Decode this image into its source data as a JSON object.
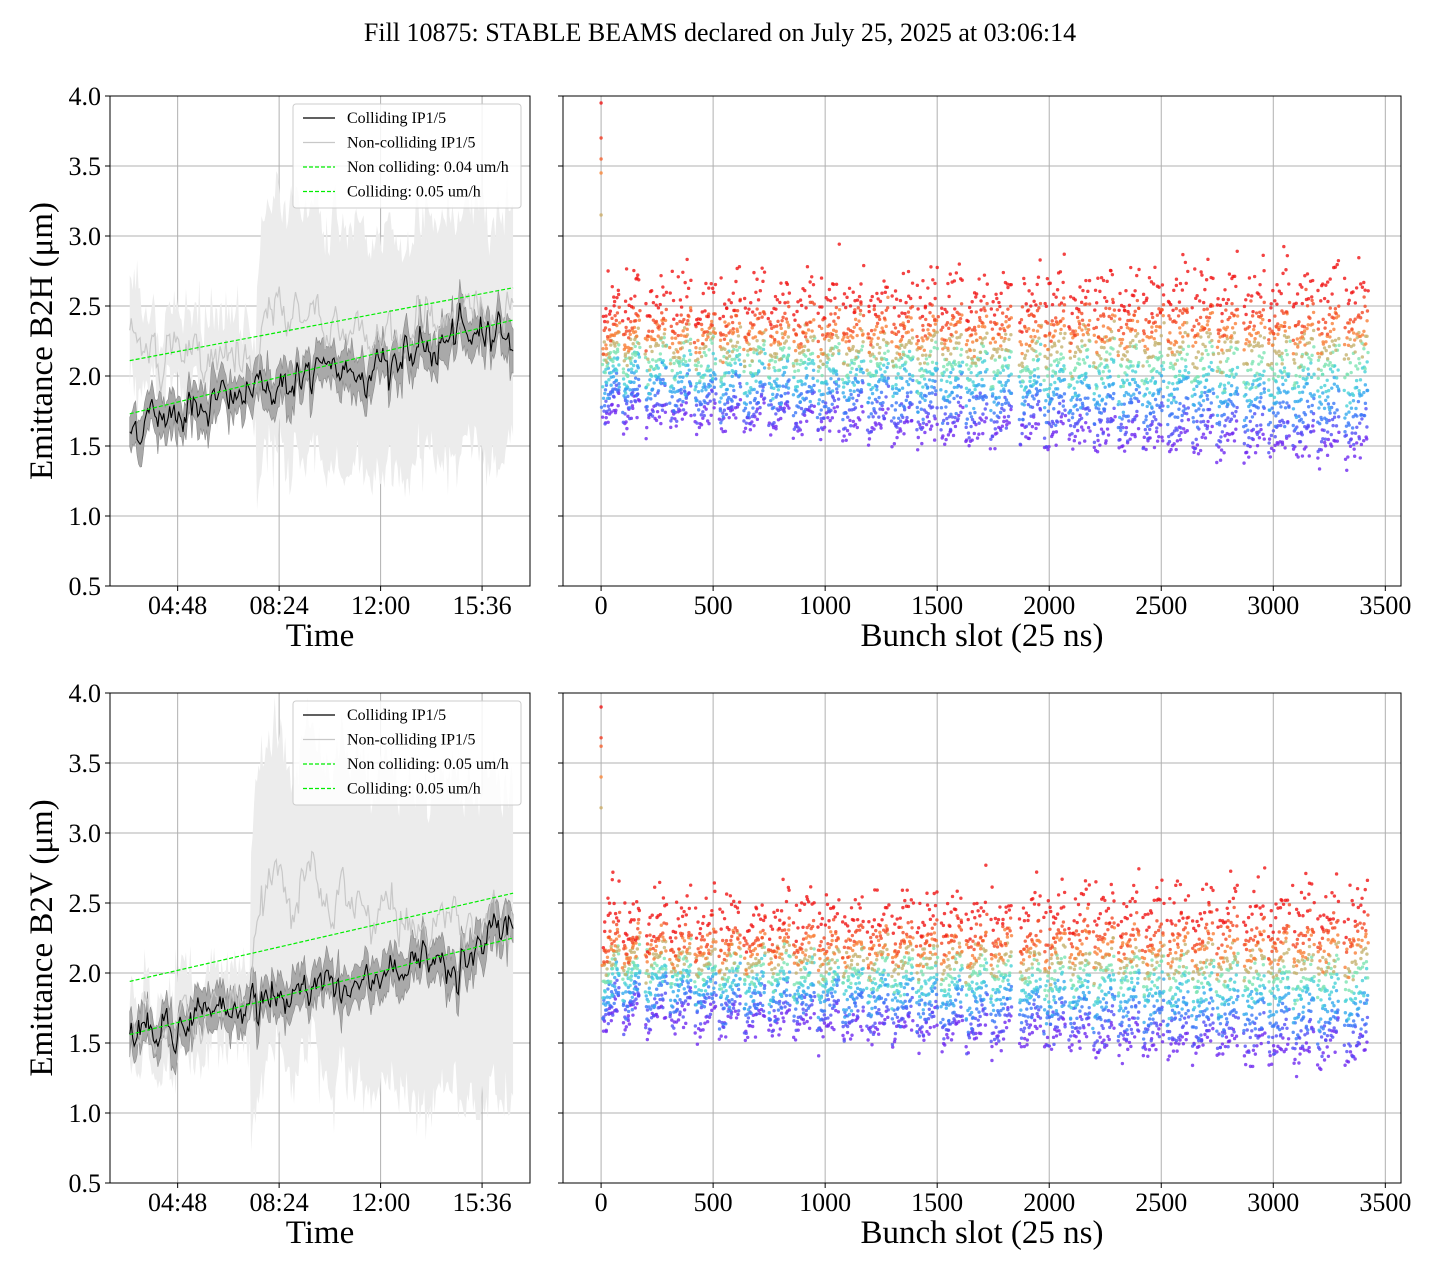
{
  "suptitle": "Fill 10875: STABLE BEAMS declared on July 25, 2025 at 03:06:14",
  "colors": {
    "colliding": "#000000",
    "noncolliding": "#c8c8c8",
    "band_colliding": "#a9a9a9",
    "band_noncolliding": "#ececec",
    "fit": "#00ee00",
    "grid": "#b0b0b0"
  },
  "chart_data": [
    {
      "id": "b2h-time",
      "type": "line",
      "ylabel": "Emittance B2H (μm)",
      "xlabel": "Time",
      "ylim": [
        0.5,
        4.0
      ],
      "yticks": [
        "0.5",
        "1.0",
        "1.5",
        "2.0",
        "2.5",
        "3.0",
        "3.5",
        "4.0"
      ],
      "xtick_labels": [
        "04:48",
        "08:24",
        "12:00",
        "15:36"
      ],
      "xtick_hours": [
        4.8,
        8.4,
        12.0,
        15.6
      ],
      "xlim_hours": [
        2.4,
        17.3
      ],
      "grid": true,
      "legend_position": "top-right",
      "legend": [
        "Colliding IP1/5",
        "Non-colliding IP1/5",
        "Non colliding: 0.04 um/h",
        "Colliding: 0.05 um/h"
      ],
      "series": [
        {
          "name": "Colliding IP1/5",
          "x": [
            3.1,
            4.0,
            5.0,
            6.0,
            7.0,
            8.0,
            9.0,
            10.0,
            11.0,
            12.0,
            13.0,
            14.0,
            15.0,
            16.0,
            16.7
          ],
          "y": [
            1.62,
            1.72,
            1.78,
            1.82,
            1.85,
            1.92,
            1.97,
            2.02,
            2.04,
            2.08,
            2.14,
            2.2,
            2.28,
            2.36,
            2.3
          ]
        },
        {
          "name": "Non-colliding IP1/5",
          "x": [
            3.1,
            4.0,
            5.0,
            6.0,
            7.0,
            7.6,
            8.0,
            9.0,
            10.0,
            11.0,
            12.0,
            13.0,
            14.0,
            15.0,
            16.0,
            16.7
          ],
          "y": [
            2.25,
            2.2,
            2.15,
            2.1,
            2.08,
            2.0,
            2.35,
            2.5,
            2.4,
            2.35,
            2.3,
            2.35,
            2.4,
            2.45,
            2.5,
            2.45
          ]
        },
        {
          "name": "Non colliding: 0.04 um/h",
          "x": [
            3.1,
            16.7
          ],
          "y": [
            2.11,
            2.63
          ]
        },
        {
          "name": "Colliding: 0.05 um/h",
          "x": [
            3.1,
            16.7
          ],
          "y": [
            1.73,
            2.4
          ]
        }
      ]
    },
    {
      "id": "b2h-bunch",
      "type": "scatter",
      "xlabel": "Bunch slot (25 ns)",
      "ylim": [
        0.5,
        4.0
      ],
      "xlim": [
        -170,
        3570
      ],
      "xticks": [
        0,
        500,
        1000,
        1500,
        2000,
        2500,
        3000,
        3500
      ],
      "grid": true,
      "trains": [
        {
          "start": 10,
          "end": 80
        },
        {
          "start": 100,
          "end": 170
        },
        {
          "start": 200,
          "end": 290
        },
        {
          "start": 310,
          "end": 400
        },
        {
          "start": 420,
          "end": 510
        },
        {
          "start": 530,
          "end": 620
        },
        {
          "start": 640,
          "end": 730
        },
        {
          "start": 750,
          "end": 840
        },
        {
          "start": 860,
          "end": 950
        },
        {
          "start": 970,
          "end": 1060
        },
        {
          "start": 1080,
          "end": 1170
        },
        {
          "start": 1190,
          "end": 1280
        },
        {
          "start": 1300,
          "end": 1390
        },
        {
          "start": 1410,
          "end": 1500
        },
        {
          "start": 1520,
          "end": 1610
        },
        {
          "start": 1630,
          "end": 1720
        },
        {
          "start": 1740,
          "end": 1830
        },
        {
          "start": 1870,
          "end": 1960
        },
        {
          "start": 1980,
          "end": 2070
        },
        {
          "start": 2090,
          "end": 2180
        },
        {
          "start": 2200,
          "end": 2290
        },
        {
          "start": 2310,
          "end": 2400
        },
        {
          "start": 2420,
          "end": 2510
        },
        {
          "start": 2530,
          "end": 2620
        },
        {
          "start": 2640,
          "end": 2730
        },
        {
          "start": 2750,
          "end": 2840
        },
        {
          "start": 2870,
          "end": 2960
        },
        {
          "start": 2980,
          "end": 3070
        },
        {
          "start": 3090,
          "end": 3180
        },
        {
          "start": 3200,
          "end": 3290
        },
        {
          "start": 3320,
          "end": 3420
        }
      ],
      "emittance_low_start": 1.65,
      "emittance_low_end": 1.4,
      "emittance_high_start": 2.35,
      "emittance_high_end": 2.45,
      "pilot_slot": 0,
      "pilot_values": [
        3.95,
        3.7,
        3.55,
        3.45,
        3.15
      ]
    },
    {
      "id": "b2v-time",
      "type": "line",
      "ylabel": "Emittance B2V (μm)",
      "xlabel": "Time",
      "ylim": [
        0.5,
        4.0
      ],
      "yticks": [
        "0.5",
        "1.0",
        "1.5",
        "2.0",
        "2.5",
        "3.0",
        "3.5",
        "4.0"
      ],
      "xtick_labels": [
        "04:48",
        "08:24",
        "12:00",
        "15:36"
      ],
      "xtick_hours": [
        4.8,
        8.4,
        12.0,
        15.6
      ],
      "xlim_hours": [
        2.4,
        17.3
      ],
      "grid": true,
      "legend_position": "top-right",
      "legend": [
        "Colliding IP1/5",
        "Non-colliding IP1/5",
        "Non colliding: 0.05 um/h",
        "Colliding: 0.05 um/h"
      ],
      "series": [
        {
          "name": "Colliding IP1/5",
          "x": [
            3.1,
            4.0,
            5.0,
            6.0,
            7.0,
            8.0,
            9.0,
            10.0,
            11.0,
            12.0,
            13.0,
            14.0,
            15.0,
            16.0,
            16.7
          ],
          "y": [
            1.56,
            1.6,
            1.66,
            1.72,
            1.77,
            1.84,
            1.89,
            1.93,
            1.9,
            2.0,
            2.04,
            2.08,
            2.13,
            2.25,
            2.28
          ]
        },
        {
          "name": "Non-colliding IP1/5",
          "x": [
            3.1,
            4.0,
            5.0,
            6.0,
            7.0,
            7.4,
            8.0,
            9.0,
            10.0,
            11.0,
            12.0,
            13.0,
            14.0,
            15.0,
            16.0,
            16.7
          ],
          "y": [
            1.62,
            1.66,
            1.7,
            1.74,
            1.78,
            1.8,
            2.6,
            2.6,
            2.5,
            2.45,
            2.42,
            2.4,
            2.38,
            2.36,
            2.35,
            2.3
          ]
        },
        {
          "name": "Non colliding: 0.05 um/h",
          "x": [
            3.1,
            16.7
          ],
          "y": [
            1.94,
            2.57
          ]
        },
        {
          "name": "Colliding: 0.05 um/h",
          "x": [
            3.1,
            16.7
          ],
          "y": [
            1.56,
            2.25
          ]
        }
      ]
    },
    {
      "id": "b2v-bunch",
      "type": "scatter",
      "xlabel": "Bunch slot (25 ns)",
      "ylim": [
        0.5,
        4.0
      ],
      "xlim": [
        -170,
        3570
      ],
      "xticks": [
        0,
        500,
        1000,
        1500,
        2000,
        2500,
        3000,
        3500
      ],
      "grid": true,
      "trains": [
        {
          "start": 10,
          "end": 80
        },
        {
          "start": 100,
          "end": 170
        },
        {
          "start": 200,
          "end": 290
        },
        {
          "start": 310,
          "end": 400
        },
        {
          "start": 420,
          "end": 510
        },
        {
          "start": 530,
          "end": 620
        },
        {
          "start": 640,
          "end": 730
        },
        {
          "start": 750,
          "end": 840
        },
        {
          "start": 860,
          "end": 950
        },
        {
          "start": 970,
          "end": 1060
        },
        {
          "start": 1080,
          "end": 1170
        },
        {
          "start": 1190,
          "end": 1280
        },
        {
          "start": 1300,
          "end": 1390
        },
        {
          "start": 1410,
          "end": 1500
        },
        {
          "start": 1520,
          "end": 1610
        },
        {
          "start": 1630,
          "end": 1720
        },
        {
          "start": 1740,
          "end": 1830
        },
        {
          "start": 1870,
          "end": 1960
        },
        {
          "start": 1980,
          "end": 2070
        },
        {
          "start": 2090,
          "end": 2180
        },
        {
          "start": 2200,
          "end": 2290
        },
        {
          "start": 2310,
          "end": 2400
        },
        {
          "start": 2420,
          "end": 2510
        },
        {
          "start": 2530,
          "end": 2620
        },
        {
          "start": 2640,
          "end": 2730
        },
        {
          "start": 2750,
          "end": 2840
        },
        {
          "start": 2870,
          "end": 2960
        },
        {
          "start": 2980,
          "end": 3070
        },
        {
          "start": 3090,
          "end": 3180
        },
        {
          "start": 3200,
          "end": 3290
        },
        {
          "start": 3320,
          "end": 3420
        }
      ],
      "emittance_low_start": 1.62,
      "emittance_low_end": 1.35,
      "emittance_high_start": 2.2,
      "emittance_high_end": 2.3,
      "pilot_slot": 0,
      "pilot_values": [
        3.9,
        3.68,
        3.62,
        3.4,
        3.18
      ]
    }
  ]
}
